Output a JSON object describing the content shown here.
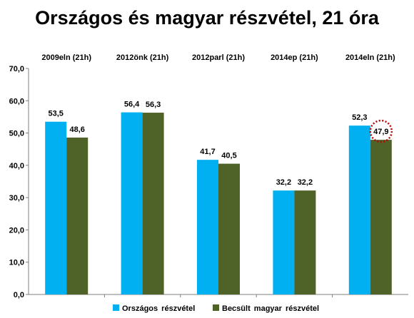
{
  "chart_data": {
    "type": "bar",
    "title": "Országos és magyar részvétel, 21 óra",
    "categories": [
      "2009eln (21h)",
      "2012önk (21h)",
      "2012parl (21h)",
      "2014ep (21h)",
      "2014eln (21h)"
    ],
    "series": [
      {
        "name": "Országos részvétel",
        "values": [
          53.5,
          56.4,
          41.7,
          32.2,
          52.3
        ],
        "labels": [
          "53,5",
          "56,4",
          "41,7",
          "32,2",
          "52,3"
        ],
        "color": "#00b0f0"
      },
      {
        "name": "Becsült magyar részvétel",
        "values": [
          48.6,
          56.3,
          40.5,
          32.2,
          47.9
        ],
        "labels": [
          "48,6",
          "56,3",
          "40,5",
          "32,2",
          "47,9"
        ],
        "color": "#4f6228"
      }
    ],
    "ylim": [
      0,
      70
    ],
    "yticks": [
      0,
      10,
      20,
      30,
      40,
      50,
      60,
      70
    ],
    "ytick_labels": [
      "0,0",
      "10,0",
      "20,0",
      "30,0",
      "40,0",
      "50,0",
      "60,0",
      "70,0"
    ],
    "grid": false,
    "legend": "bottom",
    "highlight": {
      "category_index": 4,
      "series_index": 1,
      "style": "red dotted circle"
    },
    "highlight_color": "#c00000"
  }
}
